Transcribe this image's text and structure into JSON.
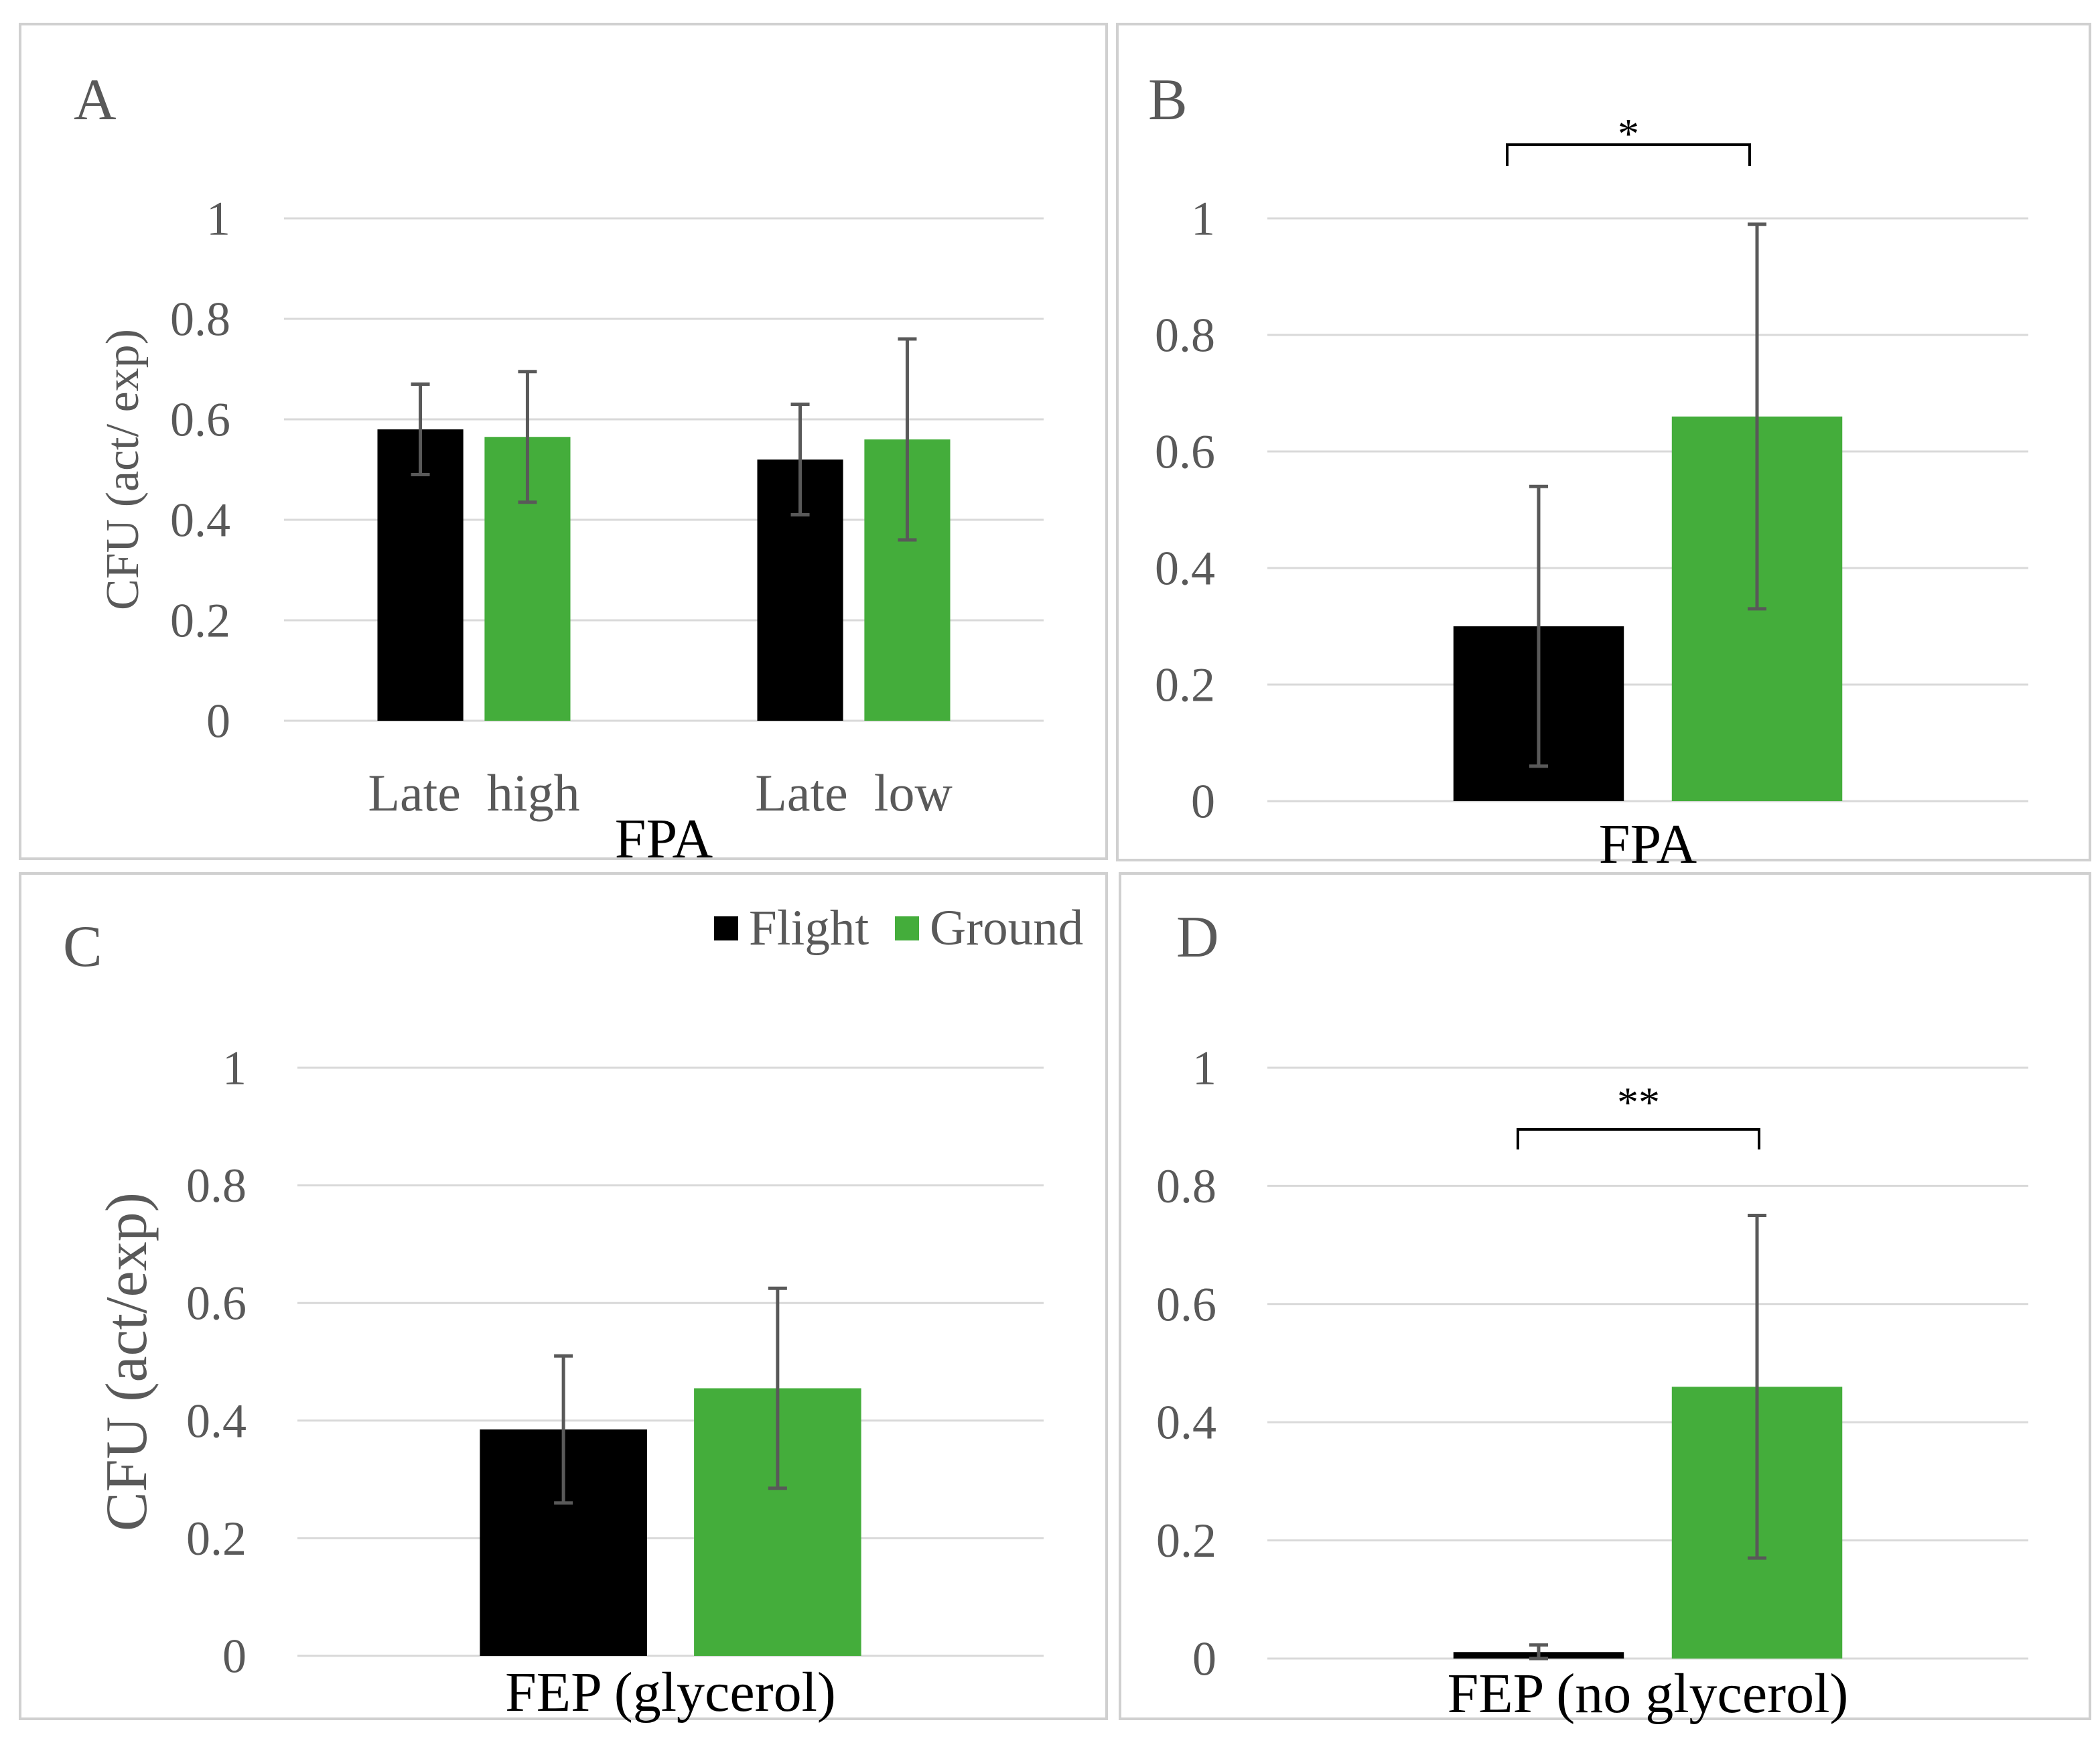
{
  "colors": {
    "error_bar": "#595959",
    "gridline": "#D9D9D9",
    "axis_text": "#595959",
    "axis_title": "#000000",
    "panel_border": "#D0D0D0",
    "significance": "#000000"
  },
  "chart_data": [
    {
      "panel": "A",
      "type": "bar",
      "ylabel": "CFU (act/ exp)",
      "xlabel": "FPA",
      "ylim": [
        0,
        1
      ],
      "y_ticks": [
        0,
        0.2,
        0.4,
        0.6,
        0.8,
        1
      ],
      "grid": true,
      "categories": [
        "Late  high",
        "Late  low"
      ],
      "series": [
        {
          "name": "Flight",
          "color": "#000000",
          "values": [
            0.58,
            0.52
          ],
          "error": [
            0.09,
            0.11
          ]
        },
        {
          "name": "Ground",
          "color": "#44AD3B",
          "values": [
            0.565,
            0.56
          ],
          "error": [
            0.13,
            0.2
          ]
        }
      ]
    },
    {
      "panel": "B",
      "type": "bar",
      "xlabel": "FPA",
      "ylim": [
        0,
        1
      ],
      "y_ticks": [
        0,
        0.2,
        0.4,
        0.6,
        0.8,
        1
      ],
      "grid": true,
      "series": [
        {
          "name": "Flight",
          "color": "#000000",
          "values": [
            0.3
          ],
          "error": [
            0.24
          ]
        },
        {
          "name": "Ground",
          "color": "#44AD3B",
          "values": [
            0.66
          ],
          "error": [
            0.33
          ]
        }
      ],
      "significance": [
        {
          "text": "*",
          "between_series": [
            0,
            1
          ],
          "category": 0
        }
      ]
    },
    {
      "panel": "C",
      "type": "bar",
      "ylabel": "CFU (act/exp)",
      "xlabel": "FEP (glycerol)",
      "ylim": [
        0,
        1
      ],
      "y_ticks": [
        0,
        0.2,
        0.4,
        0.6,
        0.8,
        1
      ],
      "grid": true,
      "series": [
        {
          "name": "Flight",
          "color": "#000000",
          "values": [
            0.385
          ],
          "error": [
            0.125
          ]
        },
        {
          "name": "Ground",
          "color": "#44AD3B",
          "values": [
            0.455
          ],
          "error": [
            0.17
          ]
        }
      ],
      "legend": {
        "placement": "top-right",
        "series": [
          0,
          1
        ]
      }
    },
    {
      "panel": "D",
      "type": "bar",
      "xlabel": "FEP (no glycerol)",
      "ylim": [
        0,
        1
      ],
      "y_ticks": [
        0,
        0.2,
        0.4,
        0.6,
        0.8,
        1
      ],
      "grid": true,
      "series": [
        {
          "name": "Flight",
          "color": "#000000",
          "values": [
            0.011
          ],
          "error": [
            0.012
          ]
        },
        {
          "name": "Ground",
          "color": "#44AD3B",
          "values": [
            0.46
          ],
          "error": [
            0.29
          ]
        }
      ],
      "significance": [
        {
          "text": "**",
          "between_series": [
            0,
            1
          ],
          "category": 0
        }
      ]
    }
  ]
}
